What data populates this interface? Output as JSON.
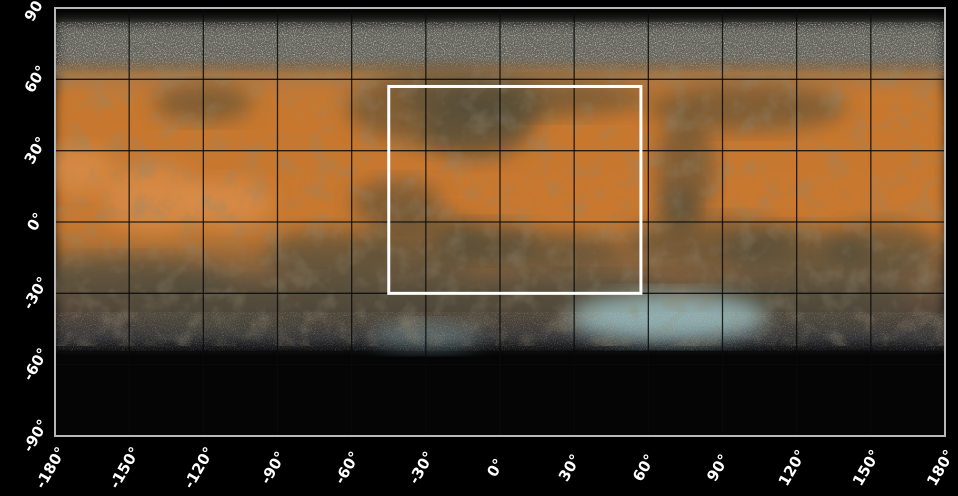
{
  "map": {
    "projection": "simple cylindrical",
    "longitude_range": [
      -180,
      180
    ],
    "latitude_range": [
      -90,
      90
    ],
    "grid_step_degrees": 30,
    "grid_on": true,
    "x_tick_labels": [
      "-180°",
      "-150°",
      "-120°",
      "-90°",
      "-60°",
      "-30°",
      "0°",
      "30°",
      "60°",
      "90°",
      "120°",
      "150°",
      "180°"
    ],
    "y_tick_labels": [
      "90°",
      "60°",
      "30°",
      "0°",
      "-30°",
      "-60°",
      "-90°"
    ],
    "highlight_box": {
      "lon_min": -45,
      "lon_max": 57,
      "lat_min": -30,
      "lat_max": 57
    },
    "colors": {
      "background": "#000000",
      "frame": "#b8b8b8",
      "grid": "#0a0a0a",
      "surface_orange": "#c8782f",
      "surface_dark": "#4a4a3a",
      "polar_frost": "#d8d8c8",
      "southern_frost": "#9ec4c8",
      "highlight_box": "#ffffff"
    }
  }
}
